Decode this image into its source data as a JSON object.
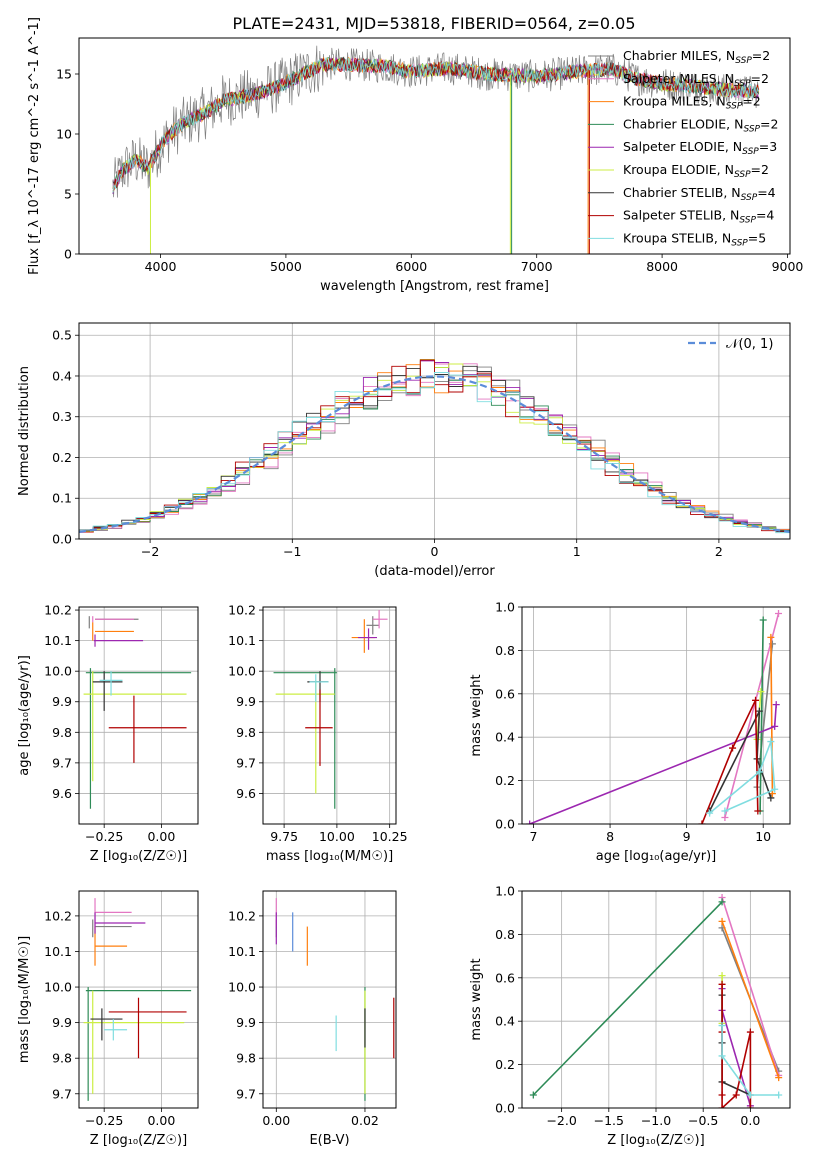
{
  "figure_title": "PLATE=2431, MJD=53818, FIBERID=0564, z=0.05",
  "series_styles": [
    {
      "name": "Chabrier MILES, N_SSP=2",
      "color": "#808080"
    },
    {
      "name": "Salpeter MILES, N_SSP=2",
      "color": "#e377c2"
    },
    {
      "name": "Kroupa MILES, N_SSP=2",
      "color": "#ff7f0e"
    },
    {
      "name": "Chabrier ELODIE, N_SSP=2",
      "color": "#2e8b57"
    },
    {
      "name": "Salpeter ELODIE, N_SSP=3",
      "color": "#9c27b0"
    },
    {
      "name": "Kroupa ELODIE, N_SSP=2",
      "color": "#ccee44"
    },
    {
      "name": "Chabrier STELIB, N_SSP=4",
      "color": "#333333"
    },
    {
      "name": "Salpeter STELIB, N_SSP=4",
      "color": "#b00000"
    },
    {
      "name": "Kroupa STELIB, N_SSP=5",
      "color": "#80dde0"
    }
  ],
  "chart_data": [
    {
      "id": "spectrum",
      "type": "line",
      "xlabel": "wavelength [Angstrom, rest frame]",
      "ylabel": "Flux [f_λ 10^-17 erg cm^-2 s^-1 A^-1]",
      "xlim": [
        3350,
        9020
      ],
      "ylim": [
        0,
        18
      ],
      "xticks": [
        4000,
        5000,
        6000,
        7000,
        8000,
        9000
      ],
      "yticks": [
        0,
        5,
        10,
        15
      ],
      "legend_position": "right",
      "legend": [
        {
          "base": "Chabrier MILES, N",
          "sub": "SSP",
          "tail": "=2",
          "color": "#808080"
        },
        {
          "base": "Salpeter MILES, N",
          "sub": "SSP",
          "tail": "=2",
          "color": "#e377c2"
        },
        {
          "base": "Kroupa MILES, N",
          "sub": "SSP",
          "tail": "=2",
          "color": "#ff7f0e"
        },
        {
          "base": "Chabrier ELODIE, N",
          "sub": "SSP",
          "tail": "=2",
          "color": "#2e8b57"
        },
        {
          "base": "Salpeter ELODIE, N",
          "sub": "SSP",
          "tail": "=3",
          "color": "#9c27b0"
        },
        {
          "base": "Kroupa ELODIE, N",
          "sub": "SSP",
          "tail": "=2",
          "color": "#ccee44"
        },
        {
          "base": "Chabrier STELIB, N",
          "sub": "SSP",
          "tail": "=4",
          "color": "#333333"
        },
        {
          "base": "Salpeter STELIB, N",
          "sub": "SSP",
          "tail": "=4",
          "color": "#b00000"
        },
        {
          "base": "Kroupa STELIB, N",
          "sub": "SSP",
          "tail": "=5",
          "color": "#80dde0"
        }
      ],
      "continuum": [
        [
          3620,
          5.5
        ],
        [
          3700,
          7.0
        ],
        [
          3800,
          7.8
        ],
        [
          3900,
          7.2
        ],
        [
          4000,
          9.0
        ],
        [
          4100,
          10.2
        ],
        [
          4200,
          11.0
        ],
        [
          4300,
          11.5
        ],
        [
          4400,
          12.0
        ],
        [
          4500,
          12.8
        ],
        [
          4700,
          13.2
        ],
        [
          4900,
          13.8
        ],
        [
          5100,
          14.8
        ],
        [
          5300,
          15.8
        ],
        [
          5500,
          15.8
        ],
        [
          5800,
          15.6
        ],
        [
          6000,
          15.2
        ],
        [
          6300,
          15.5
        ],
        [
          6600,
          15.0
        ],
        [
          7000,
          14.8
        ],
        [
          7400,
          15.3
        ],
        [
          7600,
          15.4
        ],
        [
          7800,
          14.6
        ],
        [
          8000,
          14.2
        ],
        [
          8300,
          13.9
        ],
        [
          8500,
          13.7
        ],
        [
          8770,
          13.5
        ]
      ],
      "dips": [
        {
          "color": "#ccee44",
          "x": 3920,
          "to": 0
        },
        {
          "color": "#ccee44",
          "x": 6790,
          "to": 0
        },
        {
          "color": "#ff7f0e",
          "x": 7410,
          "to": 0
        },
        {
          "color": "#b00000",
          "x": 7420,
          "to": 0
        },
        {
          "color": "#2e8b57",
          "x": 6800,
          "to": 0
        }
      ]
    },
    {
      "id": "residuals",
      "type": "histogram",
      "xlabel": "(data-model)/error",
      "ylabel": "Normed distribution",
      "xlim": [
        -2.5,
        2.5
      ],
      "ylim": [
        0,
        0.53
      ],
      "xticks": [
        -2,
        -1,
        0,
        1,
        2
      ],
      "yticks": [
        0.0,
        0.1,
        0.2,
        0.3,
        0.4,
        0.5
      ],
      "bin_width": 0.1,
      "reference_label": "𝒩(0, 1)",
      "reference_color": "#5b8dd9",
      "reference_curve": "normal(0,1)",
      "legend_position": "top-right"
    },
    {
      "id": "age_vs_Z",
      "type": "errorbar",
      "xlabel": "Z [log₁₀(Z/Z☉)]",
      "ylabel": "age  [log₁₀(age/yr)]",
      "xlim": [
        -0.36,
        0.16
      ],
      "ylim": [
        9.5,
        10.21
      ],
      "xticks": [
        -0.25,
        0.0
      ],
      "yticks": [
        9.6,
        9.7,
        9.8,
        9.9,
        10.0,
        10.1,
        10.2
      ],
      "points": [
        {
          "color": "#808080",
          "x": [
            -0.315,
            -0.29,
            -0.1
          ],
          "y": [
            10.17,
            10.14,
            10.18
          ]
        },
        {
          "color": "#e377c2",
          "x": [
            -0.3,
            -0.29,
            -0.12
          ],
          "y": [
            10.17,
            10.16,
            10.18
          ]
        },
        {
          "color": "#ff7f0e",
          "x": [
            -0.3,
            -0.29,
            -0.12
          ],
          "y": [
            10.13,
            10.1,
            10.16
          ]
        },
        {
          "color": "#2e8b57",
          "x": [
            -0.31,
            -0.33,
            0.13
          ],
          "y": [
            9.995,
            9.55,
            10.01
          ]
        },
        {
          "color": "#9c27b0",
          "x": [
            -0.29,
            -0.295,
            -0.08
          ],
          "y": [
            10.1,
            10.08,
            10.12
          ]
        },
        {
          "color": "#ccee44",
          "x": [
            -0.3,
            -0.34,
            0.11
          ],
          "y": [
            9.925,
            9.64,
            10.0
          ]
        },
        {
          "color": "#333333",
          "x": [
            -0.25,
            -0.3,
            -0.17
          ],
          "y": [
            9.965,
            9.87,
            10.0
          ]
        },
        {
          "color": "#b00000",
          "x": [
            -0.12,
            -0.23,
            0.11
          ],
          "y": [
            9.815,
            9.7,
            9.92
          ]
        },
        {
          "color": "#80dde0",
          "x": [
            -0.22,
            -0.27,
            -0.17
          ],
          "y": [
            9.97,
            9.92,
            10.0
          ]
        }
      ]
    },
    {
      "id": "age_vs_mass",
      "type": "errorbar",
      "xlabel": "mass [log₁₀(M/M☉)]",
      "ylabel": "",
      "xlim": [
        9.65,
        10.28
      ],
      "ylim": [
        9.5,
        10.21
      ],
      "xticks": [
        9.75,
        10.0,
        10.25
      ],
      "yticks": [
        9.6,
        9.7,
        9.8,
        9.9,
        10.0,
        10.1,
        10.2
      ],
      "points": [
        {
          "color": "#808080",
          "x": [
            10.17,
            10.14,
            10.2
          ],
          "y": [
            10.15,
            10.12,
            10.18
          ]
        },
        {
          "color": "#e377c2",
          "x": [
            10.2,
            10.17,
            10.24
          ],
          "y": [
            10.17,
            10.14,
            10.2
          ]
        },
        {
          "color": "#ff7f0e",
          "x": [
            10.13,
            10.07,
            10.18
          ],
          "y": [
            10.11,
            10.06,
            10.17
          ]
        },
        {
          "color": "#2e8b57",
          "x": [
            9.99,
            9.7,
            10.0
          ],
          "y": [
            9.995,
            9.55,
            10.01
          ]
        },
        {
          "color": "#9c27b0",
          "x": [
            10.15,
            10.1,
            10.19
          ],
          "y": [
            10.11,
            10.07,
            10.14
          ]
        },
        {
          "color": "#ccee44",
          "x": [
            9.9,
            9.71,
            9.99
          ],
          "y": [
            9.925,
            9.6,
            9.97
          ]
        },
        {
          "color": "#333333",
          "x": [
            9.92,
            9.86,
            9.96
          ],
          "y": [
            9.965,
            9.9,
            10.0
          ]
        },
        {
          "color": "#b00000",
          "x": [
            9.92,
            9.85,
            9.98
          ],
          "y": [
            9.815,
            9.69,
            9.94
          ]
        },
        {
          "color": "#80dde0",
          "x": [
            9.9,
            9.87,
            9.96
          ],
          "y": [
            9.965,
            9.9,
            9.99
          ]
        }
      ]
    },
    {
      "id": "weight_vs_age",
      "type": "line",
      "xlabel": "age  [log₁₀(age/yr)]",
      "ylabel": "mass weight",
      "xlim": [
        6.85,
        10.35
      ],
      "ylim": [
        0,
        1.0
      ],
      "xticks": [
        7,
        8,
        9,
        10
      ],
      "yticks": [
        0.0,
        0.2,
        0.4,
        0.6,
        0.8,
        1.0
      ],
      "series": [
        {
          "color": "#808080",
          "x": [
            10.12,
            9.92
          ],
          "y": [
            0.83,
            0.17
          ]
        },
        {
          "color": "#e377c2",
          "x": [
            10.2,
            9.5
          ],
          "y": [
            0.97,
            0.03
          ]
        },
        {
          "color": "#ff7f0e",
          "x": [
            10.1,
            10.12
          ],
          "y": [
            0.86,
            0.14
          ]
        },
        {
          "color": "#2e8b57",
          "x": [
            10.0,
            9.96
          ],
          "y": [
            0.94,
            0.06
          ]
        },
        {
          "color": "#9c27b0",
          "x": [
            6.95,
            10.15,
            10.17
          ],
          "y": [
            0.0,
            0.45,
            0.55
          ]
        },
        {
          "color": "#ccee44",
          "x": [
            9.97,
            9.92
          ],
          "y": [
            0.61,
            0.39
          ]
        },
        {
          "color": "#333333",
          "x": [
            9.3,
            9.95,
            9.92,
            10.1
          ],
          "y": [
            0.06,
            0.52,
            0.3,
            0.12
          ]
        },
        {
          "color": "#b00000",
          "x": [
            9.2,
            9.6,
            9.9,
            9.93
          ],
          "y": [
            0.0,
            0.35,
            0.57,
            0.06
          ]
        },
        {
          "color": "#80dde0",
          "x": [
            9.3,
            9.95,
            10.1,
            10.15,
            9.5
          ],
          "y": [
            0.05,
            0.24,
            0.38,
            0.16,
            0.06
          ]
        }
      ]
    },
    {
      "id": "mass_vs_Z",
      "type": "errorbar",
      "xlabel": "Z [log₁₀(Z/Z☉)]",
      "ylabel": "mass [log₁₀(M/M☉)]",
      "xlim": [
        -0.36,
        0.16
      ],
      "ylim": [
        9.66,
        10.27
      ],
      "xticks": [
        -0.25,
        0.0
      ],
      "yticks": [
        9.7,
        9.8,
        9.9,
        10.0,
        10.1,
        10.2
      ],
      "points": [
        {
          "color": "#808080",
          "x": [
            -0.3,
            -0.29,
            -0.13
          ],
          "y": [
            10.17,
            10.14,
            10.19
          ]
        },
        {
          "color": "#e377c2",
          "x": [
            -0.29,
            -0.29,
            -0.13
          ],
          "y": [
            10.21,
            10.17,
            10.25
          ]
        },
        {
          "color": "#ff7f0e",
          "x": [
            -0.29,
            -0.29,
            -0.15
          ],
          "y": [
            10.115,
            10.06,
            10.17
          ]
        },
        {
          "color": "#2e8b57",
          "x": [
            -0.32,
            -0.33,
            0.13
          ],
          "y": [
            9.99,
            9.68,
            10.0
          ]
        },
        {
          "color": "#9c27b0",
          "x": [
            -0.29,
            -0.29,
            -0.07
          ],
          "y": [
            10.18,
            10.15,
            10.21
          ]
        },
        {
          "color": "#ccee44",
          "x": [
            -0.3,
            -0.34,
            0.1
          ],
          "y": [
            9.9,
            9.7,
            9.99
          ]
        },
        {
          "color": "#333333",
          "x": [
            -0.26,
            -0.31,
            -0.17
          ],
          "y": [
            9.91,
            9.85,
            9.94
          ]
        },
        {
          "color": "#b00000",
          "x": [
            -0.1,
            -0.23,
            0.11
          ],
          "y": [
            9.93,
            9.8,
            9.97
          ]
        },
        {
          "color": "#80dde0",
          "x": [
            -0.21,
            -0.25,
            -0.15
          ],
          "y": [
            9.88,
            9.85,
            9.91
          ]
        }
      ]
    },
    {
      "id": "mass_vs_EBV",
      "type": "errorbar",
      "xlabel": "E(B-V)",
      "ylabel": "",
      "xlim": [
        -0.003,
        0.027
      ],
      "ylim": [
        9.66,
        10.27
      ],
      "xticks": [
        0.0,
        0.02
      ],
      "yticks": [
        9.7,
        9.8,
        9.9,
        10.0,
        10.1,
        10.2
      ],
      "points": [
        {
          "color": "#808080",
          "x": [
            0.0
          ],
          "y": [
            10.17,
            10.14,
            10.19
          ]
        },
        {
          "color": "#e377c2",
          "x": [
            0.0
          ],
          "y": [
            10.21,
            10.17,
            10.25
          ]
        },
        {
          "color": "#ff7f0e",
          "x": [
            0.007
          ],
          "y": [
            10.115,
            10.06,
            10.17
          ]
        },
        {
          "color": "#2e8b57",
          "x": [
            0.02
          ],
          "y": [
            9.99,
            9.68,
            10.0
          ]
        },
        {
          "color": "#9c27b0",
          "x": [
            0.0
          ],
          "y": [
            10.18,
            10.12,
            10.21
          ]
        },
        {
          "color": "#ccee44",
          "x": [
            0.02
          ],
          "y": [
            9.9,
            9.7,
            9.99
          ]
        },
        {
          "color": "#333333",
          "x": [
            0.02
          ],
          "y": [
            9.91,
            9.83,
            9.94
          ]
        },
        {
          "color": "#b00000",
          "x": [
            0.0265
          ],
          "y": [
            9.93,
            9.8,
            9.97
          ]
        },
        {
          "color": "#80dde0",
          "x": [
            0.0135
          ],
          "y": [
            9.88,
            9.82,
            9.92
          ]
        },
        {
          "color": "#5b8dd9",
          "x": [
            0.0037
          ],
          "y": [
            10.15,
            10.1,
            10.21
          ]
        }
      ]
    },
    {
      "id": "weight_vs_Z",
      "type": "line",
      "xlabel": "Z [log₁₀(Z/Z☉)]",
      "ylabel": "mass weight",
      "xlim": [
        -2.42,
        0.42
      ],
      "ylim": [
        0,
        1.0
      ],
      "xticks": [
        -2.0,
        -1.5,
        -1.0,
        -0.5,
        0.0
      ],
      "yticks": [
        0.0,
        0.2,
        0.4,
        0.6,
        0.8,
        1.0
      ],
      "series": [
        {
          "color": "#808080",
          "x": [
            -0.3,
            0.3
          ],
          "y": [
            0.83,
            0.17
          ]
        },
        {
          "color": "#e377c2",
          "x": [
            -0.3,
            0.3
          ],
          "y": [
            0.97,
            0.15
          ]
        },
        {
          "color": "#ff7f0e",
          "x": [
            -0.3,
            0.3
          ],
          "y": [
            0.86,
            0.14
          ]
        },
        {
          "color": "#2e8b57",
          "x": [
            -2.3,
            -0.3
          ],
          "y": [
            0.06,
            0.95
          ]
        },
        {
          "color": "#9c27b0",
          "x": [
            -0.3,
            -0.3,
            0.0
          ],
          "y": [
            0.55,
            0.45,
            0.01
          ]
        },
        {
          "color": "#ccee44",
          "x": [
            -0.3,
            -0.3
          ],
          "y": [
            0.61,
            0.39
          ]
        },
        {
          "color": "#333333",
          "x": [
            -0.3,
            -0.3,
            -0.3,
            0.0
          ],
          "y": [
            0.52,
            0.3,
            0.12,
            0.06
          ]
        },
        {
          "color": "#b00000",
          "x": [
            -0.3,
            -0.3,
            -0.3,
            -0.3,
            -0.15,
            0.0,
            0.0
          ],
          "y": [
            0.57,
            0.35,
            0.06,
            0.0,
            0.06,
            0.35,
            0.0
          ]
        },
        {
          "color": "#80dde0",
          "x": [
            -0.3,
            -0.3,
            0.0,
            0.3
          ],
          "y": [
            0.38,
            0.24,
            0.06,
            0.06
          ]
        }
      ]
    }
  ]
}
